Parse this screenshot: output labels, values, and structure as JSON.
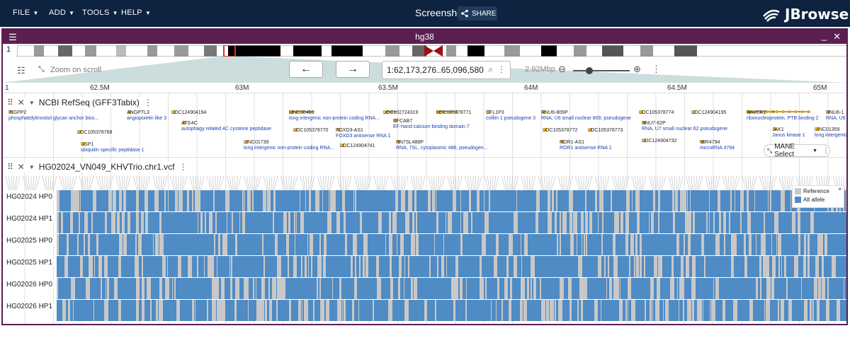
{
  "menu": {
    "file": "FILE",
    "add": "ADD",
    "tools": "TOOLS",
    "help": "HELP"
  },
  "session": {
    "name": "Screenshot",
    "share": "SHARE"
  },
  "brand": {
    "name": "JBrowse"
  },
  "view": {
    "assembly": "hg38",
    "chrom": "1",
    "zoom_label": "Zoom on scroll",
    "locstring": "1:62,173,276..65,096,580",
    "span": "2.92Mbp",
    "ruler_chrom": "1",
    "ticks": [
      "62.5M",
      "63M",
      "63.5M",
      "64M",
      "64.5M",
      "65M"
    ]
  },
  "tracks": {
    "refseq": {
      "name": "NCBI RefSeq (GFF3Tabix)",
      "genes": [
        {
          "name": "PIGPP2",
          "desc": "phosphatidylinositol glycan anchor bios..."
        },
        {
          "name": "LOC105378768",
          "desc": ""
        },
        {
          "name": "USP1",
          "desc": "ubiquitin specific peptidase 1"
        },
        {
          "name": "ANGPTL3",
          "desc": "angiopoietin like 3"
        },
        {
          "name": "LOC124904194",
          "desc": ""
        },
        {
          "name": "ATG4C",
          "desc": "autophagy related 4C cysteine peptidase"
        },
        {
          "name": "LINC01739",
          "desc": "long intergenic non-protein coding RNA..."
        },
        {
          "name": "LINC00466",
          "desc": "long intergenic non-protein coding RNA..."
        },
        {
          "name": "LOC105378770",
          "desc": ""
        },
        {
          "name": "FOXD3-AS1",
          "desc": "FOXD3 antisense RNA 1"
        },
        {
          "name": "LOC124904741",
          "desc": ""
        },
        {
          "name": "LOC102724319",
          "desc": ""
        },
        {
          "name": "EFCAB7",
          "desc": "EF-hand calcium binding domain 7"
        },
        {
          "name": "RN7SL488P",
          "desc": "RNA, 7SL, cytoplasmic 488, pseudogen..."
        },
        {
          "name": "LOC105378771",
          "desc": ""
        },
        {
          "name": "CFL1P3",
          "desc": "cofilin 1 pseudogene 3"
        },
        {
          "name": "RNU6-809P",
          "desc": "RNA, U6 small nuclear 809, pseudogene"
        },
        {
          "name": "LOC105378772",
          "desc": ""
        },
        {
          "name": "ROR1-AS1",
          "desc": "ROR1 antisense RNA 1"
        },
        {
          "name": "LOC105378773",
          "desc": ""
        },
        {
          "name": "LOC105378774",
          "desc": ""
        },
        {
          "name": "RNU7-62P",
          "desc": "RNA, U7 small nuclear 62 pseudogene"
        },
        {
          "name": "LOC124904732",
          "desc": ""
        },
        {
          "name": "LOC124904195",
          "desc": ""
        },
        {
          "name": "MIR4794",
          "desc": "microRNA 4794"
        },
        {
          "name": "RAVER2",
          "desc": "ribonucleoprotein, PTB binding 2"
        },
        {
          "name": "JAK1",
          "desc": "Janus kinase 1"
        },
        {
          "name": "LINC01359",
          "desc": "long intergenic"
        },
        {
          "name": "RNU6-1",
          "desc": "RNA, U6"
        }
      ],
      "mane": "MANE Select"
    },
    "vcf": {
      "name": "HG02024_VN049_KHVTrio.chr1.vcf",
      "samples": [
        "HG02024 HP0",
        "HG02024 HP1",
        "HG02025 HP0",
        "HG02025 HP1",
        "HG02026 HP0",
        "HG02026 HP1"
      ],
      "legend": {
        "ref": "Reference",
        "alt": "Alt allele",
        "ref_color": "#c8c8c8",
        "alt_color": "#4f8bc4",
        "close": "×"
      }
    }
  },
  "colors": {
    "appbar": "#0d233f",
    "view_header": "#5a1f4f",
    "gene": "#e6a800",
    "gene_desc": "#1b3fb3"
  }
}
